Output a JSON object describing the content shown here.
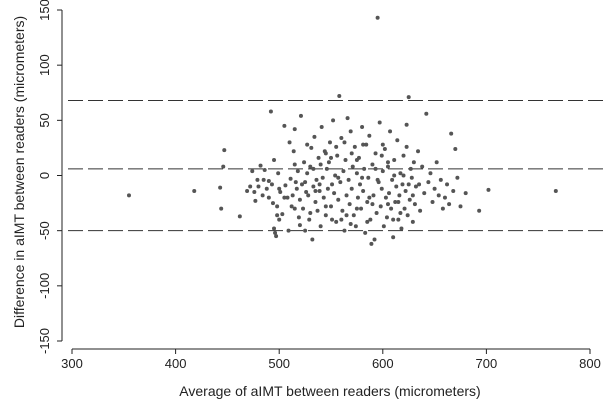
{
  "chart_data": {
    "type": "scatter",
    "title": "",
    "xlabel": "Average of aIMT between readers (micrometers)",
    "ylabel": "Difference in aIMT between readers (micrometers)",
    "xlim": [
      300,
      800
    ],
    "ylim": [
      -150,
      150
    ],
    "xticks": [
      300,
      400,
      500,
      600,
      700,
      800
    ],
    "yticks": [
      -150,
      -100,
      -50,
      0,
      50,
      100,
      150
    ],
    "grid": false,
    "legend": "none",
    "reference_lines": [
      {
        "y": 68,
        "style": "dashed"
      },
      {
        "y": 6,
        "style": "dashed"
      },
      {
        "y": -50,
        "style": "dashed"
      }
    ],
    "colors": {
      "points": "#555555",
      "lines": "#333333",
      "axis": "#222222"
    },
    "points": [
      [
        355,
        -18
      ],
      [
        418,
        -14
      ],
      [
        443,
        -11
      ],
      [
        444,
        -30
      ],
      [
        446,
        8
      ],
      [
        447,
        23
      ],
      [
        462,
        -37
      ],
      [
        469,
        -14
      ],
      [
        472,
        -10
      ],
      [
        474,
        4
      ],
      [
        476,
        -15
      ],
      [
        477,
        -23
      ],
      [
        479,
        -4
      ],
      [
        480,
        -10
      ],
      [
        482,
        9
      ],
      [
        484,
        -18
      ],
      [
        486,
        5
      ],
      [
        488,
        -12
      ],
      [
        490,
        -5
      ],
      [
        492,
        58
      ],
      [
        493,
        -8
      ],
      [
        494,
        -25
      ],
      [
        495,
        -48
      ],
      [
        496,
        -52
      ],
      [
        497,
        -55
      ],
      [
        498,
        -28
      ],
      [
        499,
        2
      ],
      [
        500,
        -12
      ],
      [
        501,
        -15
      ],
      [
        503,
        -35
      ],
      [
        505,
        45
      ],
      [
        506,
        -9
      ],
      [
        508,
        -20
      ],
      [
        509,
        -50
      ],
      [
        510,
        30
      ],
      [
        511,
        -3
      ],
      [
        512,
        -28
      ],
      [
        513,
        -18
      ],
      [
        514,
        22
      ],
      [
        515,
        42
      ],
      [
        516,
        -6
      ],
      [
        517,
        -12
      ],
      [
        518,
        4
      ],
      [
        519,
        -38
      ],
      [
        520,
        -22
      ],
      [
        521,
        54
      ],
      [
        522,
        -8
      ],
      [
        523,
        -30
      ],
      [
        524,
        12
      ],
      [
        525,
        -50
      ],
      [
        526,
        -15
      ],
      [
        527,
        2
      ],
      [
        528,
        -18
      ],
      [
        529,
        -40
      ],
      [
        530,
        8
      ],
      [
        531,
        25
      ],
      [
        532,
        -58
      ],
      [
        533,
        -10
      ],
      [
        534,
        35
      ],
      [
        535,
        -24
      ],
      [
        536,
        -4
      ],
      [
        537,
        -32
      ],
      [
        538,
        16
      ],
      [
        539,
        -14
      ],
      [
        540,
        -46
      ],
      [
        541,
        44
      ],
      [
        542,
        -2
      ],
      [
        543,
        -20
      ],
      [
        544,
        22
      ],
      [
        545,
        -36
      ],
      [
        546,
        6
      ],
      [
        547,
        -12
      ],
      [
        548,
        12
      ],
      [
        549,
        30
      ],
      [
        550,
        -28
      ],
      [
        551,
        -8
      ],
      [
        552,
        50
      ],
      [
        553,
        -16
      ],
      [
        554,
        0
      ],
      [
        555,
        -42
      ],
      [
        556,
        18
      ],
      [
        557,
        -22
      ],
      [
        558,
        72
      ],
      [
        559,
        -6
      ],
      [
        560,
        34
      ],
      [
        561,
        -32
      ],
      [
        562,
        4
      ],
      [
        563,
        -50
      ],
      [
        564,
        14
      ],
      [
        565,
        -18
      ],
      [
        566,
        52
      ],
      [
        567,
        -4
      ],
      [
        568,
        -26
      ],
      [
        569,
        40
      ],
      [
        570,
        -12
      ],
      [
        571,
        8
      ],
      [
        572,
        -36
      ],
      [
        573,
        26
      ],
      [
        574,
        -46
      ],
      [
        575,
        2
      ],
      [
        576,
        -20
      ],
      [
        577,
        16
      ],
      [
        578,
        -8
      ],
      [
        579,
        -30
      ],
      [
        580,
        44
      ],
      [
        581,
        -14
      ],
      [
        582,
        6
      ],
      [
        583,
        -52
      ],
      [
        584,
        28
      ],
      [
        585,
        -24
      ],
      [
        586,
        -2
      ],
      [
        587,
        36
      ],
      [
        588,
        -40
      ],
      [
        589,
        -62
      ],
      [
        590,
        10
      ],
      [
        591,
        -18
      ],
      [
        592,
        -58
      ],
      [
        593,
        20
      ],
      [
        594,
        -34
      ],
      [
        595,
        143
      ],
      [
        596,
        -6
      ],
      [
        597,
        48
      ],
      [
        598,
        -28
      ],
      [
        599,
        -12
      ],
      [
        600,
        4
      ],
      [
        601,
        -46
      ],
      [
        602,
        24
      ],
      [
        603,
        -20
      ],
      [
        604,
        -38
      ],
      [
        605,
        8
      ],
      [
        606,
        -16
      ],
      [
        607,
        40
      ],
      [
        608,
        -30
      ],
      [
        609,
        -4
      ],
      [
        610,
        -56
      ],
      [
        611,
        14
      ],
      [
        612,
        -24
      ],
      [
        613,
        -10
      ],
      [
        614,
        32
      ],
      [
        615,
        -40
      ],
      [
        616,
        -18
      ],
      [
        617,
        2
      ],
      [
        618,
        -48
      ],
      [
        619,
        -8
      ],
      [
        620,
        18
      ],
      [
        621,
        -30
      ],
      [
        622,
        -14
      ],
      [
        623,
        46
      ],
      [
        624,
        -36
      ],
      [
        625,
        71
      ],
      [
        626,
        -22
      ],
      [
        627,
        6
      ],
      [
        628,
        -2
      ],
      [
        629,
        -42
      ],
      [
        630,
        12
      ],
      [
        631,
        -26
      ],
      [
        632,
        -10
      ],
      [
        634,
        22
      ],
      [
        636,
        -32
      ],
      [
        638,
        8
      ],
      [
        640,
        -16
      ],
      [
        642,
        56
      ],
      [
        644,
        -6
      ],
      [
        646,
        2
      ],
      [
        648,
        -24
      ],
      [
        650,
        -12
      ],
      [
        652,
        12
      ],
      [
        654,
        -18
      ],
      [
        656,
        -4
      ],
      [
        658,
        -30
      ],
      [
        660,
        -20
      ],
      [
        662,
        -8
      ],
      [
        664,
        -26
      ],
      [
        666,
        38
      ],
      [
        668,
        -14
      ],
      [
        670,
        24
      ],
      [
        672,
        -2
      ],
      [
        675,
        -28
      ],
      [
        680,
        -16
      ],
      [
        693,
        -32
      ],
      [
        702,
        -13
      ],
      [
        767,
        -14
      ],
      [
        485,
        -4
      ],
      [
        500,
        -40
      ],
      [
        515,
        -30
      ],
      [
        527,
        28
      ],
      [
        533,
        6
      ],
      [
        539,
        -8
      ],
      [
        545,
        20
      ],
      [
        551,
        -40
      ],
      [
        557,
        -2
      ],
      [
        563,
        30
      ],
      [
        569,
        -44
      ],
      [
        575,
        -30
      ],
      [
        581,
        28
      ],
      [
        587,
        -20
      ],
      [
        593,
        6
      ],
      [
        599,
        18
      ],
      [
        605,
        -26
      ],
      [
        611,
        0
      ],
      [
        617,
        -34
      ],
      [
        623,
        26
      ],
      [
        629,
        -18
      ],
      [
        635,
        -8
      ],
      [
        520,
        -45
      ],
      [
        530,
        -34
      ],
      [
        540,
        10
      ],
      [
        550,
        16
      ],
      [
        560,
        -40
      ],
      [
        570,
        20
      ],
      [
        580,
        -2
      ],
      [
        590,
        -26
      ],
      [
        600,
        28
      ],
      [
        610,
        -40
      ],
      [
        620,
        0
      ],
      [
        505,
        -20
      ],
      [
        515,
        10
      ],
      [
        525,
        -6
      ],
      [
        535,
        -14
      ],
      [
        545,
        -28
      ],
      [
        555,
        26
      ],
      [
        565,
        -36
      ],
      [
        575,
        14
      ],
      [
        585,
        -42
      ],
      [
        595,
        -4
      ],
      [
        605,
        12
      ],
      [
        615,
        -24
      ],
      [
        625,
        -8
      ],
      [
        490,
        -20
      ],
      [
        495,
        14
      ],
      [
        498,
        -36
      ]
    ]
  }
}
